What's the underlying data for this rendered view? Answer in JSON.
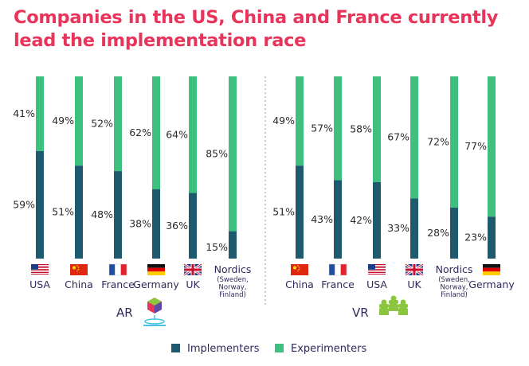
{
  "title": "Companies in the US, China and France currently lead the implementation race",
  "colors": {
    "title": "#e8345a",
    "implementers": "#1d5a6e",
    "experimenters": "#3ec07e",
    "divider": "#999999",
    "vr_icon": "#8cc63f"
  },
  "chart_data": {
    "type": "bar",
    "stacked": true,
    "normalized": true,
    "ylim": [
      0,
      100
    ],
    "legend": {
      "placement": "bottom",
      "entries": [
        {
          "name": "Implementers",
          "color": "#1d5a6e"
        },
        {
          "name": "Experimenters",
          "color": "#3ec07e"
        }
      ]
    },
    "panels": [
      {
        "label": "AR",
        "icon": "ar-hologram-icon",
        "categories": [
          {
            "name": "USA",
            "flag": "us-flag-icon"
          },
          {
            "name": "China",
            "flag": "china-flag-icon"
          },
          {
            "name": "France",
            "flag": "france-flag-icon"
          },
          {
            "name": "Germany",
            "flag": "germany-flag-icon"
          },
          {
            "name": "UK",
            "flag": "uk-flag-icon"
          },
          {
            "name": "Nordics",
            "sub": [
              "(Sweden,",
              "Norway,",
              "Finland)"
            ],
            "flag": ""
          }
        ],
        "series": [
          {
            "name": "Implementers",
            "values": [
              59,
              51,
              48,
              38,
              36,
              15
            ]
          },
          {
            "name": "Experimenters",
            "values": [
              41,
              49,
              52,
              62,
              64,
              85
            ]
          }
        ]
      },
      {
        "label": "VR",
        "icon": "vr-group-icon",
        "categories": [
          {
            "name": "China",
            "flag": "china-flag-icon"
          },
          {
            "name": "France",
            "flag": "france-flag-icon"
          },
          {
            "name": "USA",
            "flag": "us-flag-icon"
          },
          {
            "name": "UK",
            "flag": "uk-flag-icon"
          },
          {
            "name": "Nordics",
            "sub": [
              "(Sweden,",
              "Norway,",
              "Finland)"
            ],
            "flag": ""
          },
          {
            "name": "Germany",
            "flag": "germany-flag-icon"
          }
        ],
        "series": [
          {
            "name": "Implementers",
            "values": [
              51,
              43,
              42,
              33,
              28,
              23
            ]
          },
          {
            "name": "Experimenters",
            "values": [
              49,
              57,
              58,
              67,
              72,
              77
            ]
          }
        ]
      }
    ]
  }
}
